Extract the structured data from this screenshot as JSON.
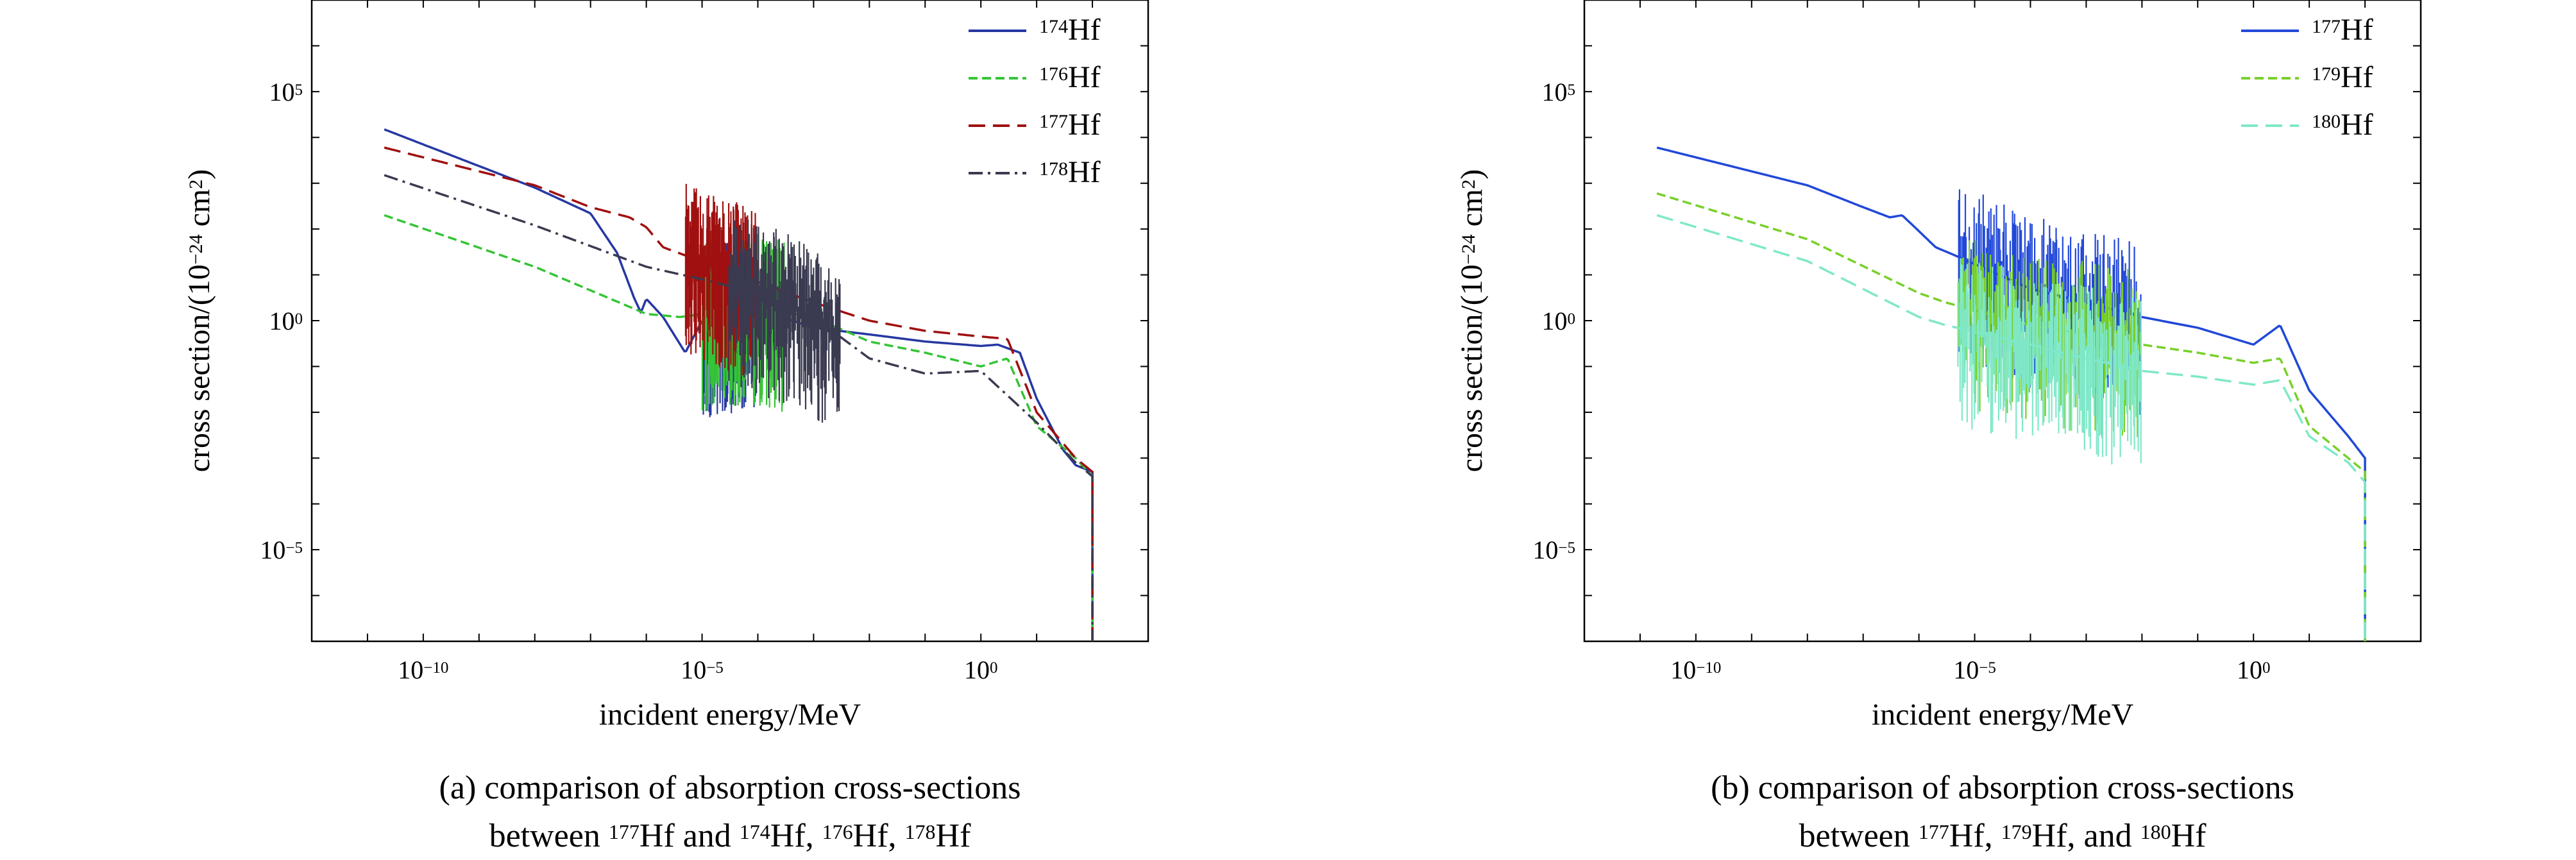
{
  "figure": {
    "panels": [
      {
        "id": "a",
        "caption_line1": "(a) comparison of absorption cross-sections",
        "caption_line2": [
          {
            "t": "between "
          },
          {
            "sup": "177"
          },
          {
            "t": "Hf and "
          },
          {
            "sup": "174"
          },
          {
            "t": "Hf, "
          },
          {
            "sup": "176"
          },
          {
            "t": "Hf, "
          },
          {
            "sup": "178"
          },
          {
            "t": "Hf"
          }
        ],
        "xlabel": "incident energy/MeV",
        "ylabel": [
          {
            "t": "cross section/(10"
          },
          {
            "sup": "−24"
          },
          {
            "t": " cm"
          },
          {
            "sup": "2"
          },
          {
            "t": ")"
          }
        ],
        "legend": [
          {
            "mass": "174",
            "element": "Hf"
          },
          {
            "mass": "176",
            "element": "Hf"
          },
          {
            "mass": "177",
            "element": "Hf"
          },
          {
            "mass": "178",
            "element": "Hf"
          }
        ]
      },
      {
        "id": "b",
        "caption_line1": "(b) comparison of absorption cross-sections",
        "caption_line2": [
          {
            "t": "between "
          },
          {
            "sup": "177"
          },
          {
            "t": "Hf, "
          },
          {
            "sup": "179"
          },
          {
            "t": "Hf, and "
          },
          {
            "sup": "180"
          },
          {
            "t": "Hf"
          }
        ],
        "xlabel": "incident energy/MeV",
        "ylabel": [
          {
            "t": "cross section/(10"
          },
          {
            "sup": "−24"
          },
          {
            "t": " cm"
          },
          {
            "sup": "2"
          },
          {
            "t": ")"
          }
        ],
        "legend": [
          {
            "mass": "177",
            "element": "Hf"
          },
          {
            "mass": "179",
            "element": "Hf"
          },
          {
            "mass": "180",
            "element": "Hf"
          }
        ]
      }
    ]
  },
  "chart_data": [
    {
      "type": "line",
      "panel": "a",
      "title": "",
      "xscale": "log",
      "yscale": "log",
      "xlim": [
        1e-12,
        1000.0
      ],
      "ylim": [
        1e-07,
        10000000.0
      ],
      "xticks": [
        {
          "value": 1e-10,
          "mantissa": "10",
          "exp": "−10"
        },
        {
          "value": 1e-05,
          "mantissa": "10",
          "exp": "−5"
        },
        {
          "value": 1,
          "mantissa": "10",
          "exp": "0"
        }
      ],
      "yticks": [
        {
          "value": 100000.0,
          "mantissa": "10",
          "exp": "5"
        },
        {
          "value": 1,
          "mantissa": "10",
          "exp": "0"
        },
        {
          "value": 1e-05,
          "mantissa": "10",
          "exp": "−5"
        }
      ],
      "legend_position": "top-right",
      "series": [
        {
          "name": "174Hf",
          "color": "#2738a3",
          "dash": "solid",
          "x": [
            2e-11,
            1e-08,
            1e-07,
            3e-07,
            6e-07,
            8e-07,
            1e-06,
            2e-06,
            5e-06,
            1e-05,
            5e-05,
            0.0001,
            0.001,
            0.01,
            0.1,
            1,
            2,
            5,
            10,
            30,
            50,
            100
          ],
          "y": [
            15000,
            800,
            220,
            30,
            3.2,
            1.5,
            3,
            1.2,
            0.2,
            1,
            1.5,
            1.8,
            0.7,
            0.5,
            0.35,
            0.28,
            0.3,
            0.2,
            0.02,
            0.0015,
            0.0007,
            0.0005
          ],
          "resonance_region": [
            1e-05,
            0.0001
          ]
        },
        {
          "name": "176Hf",
          "color": "#35c435",
          "dash": "dashed",
          "x": [
            2e-11,
            1e-08,
            1e-06,
            4e-06,
            0.0001,
            0.001,
            0.01,
            0.1,
            1,
            3,
            10,
            50,
            100
          ],
          "y": [
            200,
            15,
            1.4,
            1.2,
            2,
            1.2,
            0.35,
            0.2,
            0.1,
            0.15,
            0.005,
            0.001,
            0.0004
          ],
          "resonance_region": [
            1e-05,
            0.0003
          ]
        },
        {
          "name": "177Hf",
          "color": "#a01010",
          "dash": "long-dash",
          "x": [
            2e-11,
            1e-08,
            1e-07,
            5e-07,
            1e-06,
            2e-06,
            0.001,
            0.01,
            0.1,
            1,
            3,
            10,
            50,
            100
          ],
          "y": [
            6000,
            900,
            300,
            180,
            110,
            40,
            2.5,
            1,
            0.6,
            0.45,
            0.4,
            0.01,
            0.001,
            0.0005
          ],
          "resonance_region": [
            5e-06,
            0.0001
          ]
        },
        {
          "name": "178Hf",
          "color": "#3a3a50",
          "dash": "dash-dot",
          "x": [
            2e-11,
            1e-08,
            1e-06,
            1e-05,
            0.0001,
            0.001,
            0.01,
            0.1,
            1,
            10,
            50,
            100
          ],
          "y": [
            1500,
            120,
            15,
            8,
            4,
            1.2,
            0.15,
            0.07,
            0.08,
            0.006,
            0.0008,
            0.0004
          ],
          "resonance_region": [
            3e-05,
            0.003
          ]
        }
      ]
    },
    {
      "type": "line",
      "panel": "b",
      "title": "",
      "xscale": "log",
      "yscale": "log",
      "xlim": [
        1e-12,
        1000.0
      ],
      "ylim": [
        1e-07,
        10000000.0
      ],
      "xticks": [
        {
          "value": 1e-10,
          "mantissa": "10",
          "exp": "−10"
        },
        {
          "value": 1e-05,
          "mantissa": "10",
          "exp": "−5"
        },
        {
          "value": 1,
          "mantissa": "10",
          "exp": "0"
        }
      ],
      "yticks": [
        {
          "value": 100000.0,
          "mantissa": "10",
          "exp": "5"
        },
        {
          "value": 1,
          "mantissa": "10",
          "exp": "0"
        },
        {
          "value": 1e-05,
          "mantissa": "10",
          "exp": "−5"
        }
      ],
      "legend_position": "top-right",
      "series": [
        {
          "name": "177Hf",
          "color": "#2148d8",
          "dash": "solid",
          "x": [
            2e-11,
            1e-08,
            1e-07,
            3e-07,
            5e-07,
            1e-06,
            2e-06,
            5e-06,
            0.0001,
            0.001,
            0.01,
            0.1,
            1,
            3,
            10,
            50,
            100
          ],
          "y": [
            6000,
            900,
            300,
            180,
            200,
            90,
            40,
            25,
            5,
            2.5,
            1.2,
            0.7,
            0.3,
            0.8,
            0.03,
            0.003,
            0.001
          ],
          "resonance_region": [
            5e-06,
            0.01
          ]
        },
        {
          "name": "179Hf",
          "color": "#78d02a",
          "dash": "dashed",
          "x": [
            2e-11,
            1e-08,
            1e-06,
            3e-06,
            0.0001,
            0.001,
            0.01,
            0.1,
            1,
            3,
            10,
            50,
            100
          ],
          "y": [
            600,
            60,
            4,
            2.5,
            0.8,
            0.5,
            0.3,
            0.2,
            0.12,
            0.15,
            0.005,
            0.001,
            0.0005
          ],
          "resonance_region": [
            5e-06,
            0.01
          ]
        },
        {
          "name": "180Hf",
          "color": "#7fe8c8",
          "dash": "long-dash",
          "x": [
            2e-11,
            1e-08,
            1e-06,
            3e-06,
            0.0001,
            0.001,
            0.01,
            0.1,
            1,
            3,
            10,
            50,
            100
          ],
          "y": [
            200,
            20,
            1.2,
            0.8,
            0.3,
            0.15,
            0.08,
            0.06,
            0.04,
            0.05,
            0.003,
            0.0008,
            0.0003
          ],
          "resonance_region": [
            5e-06,
            0.01
          ]
        }
      ]
    }
  ]
}
